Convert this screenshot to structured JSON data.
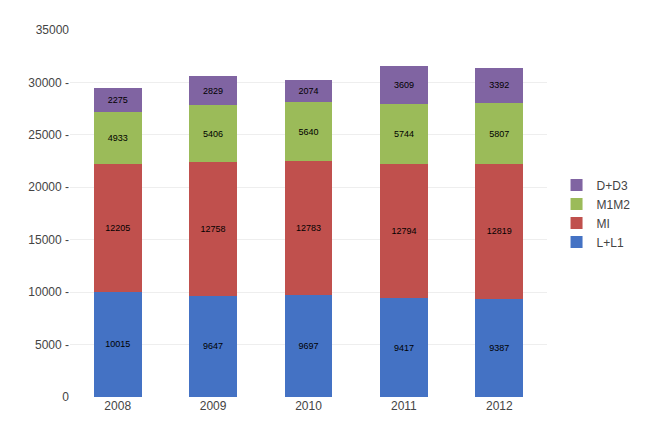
{
  "chart_data": {
    "type": "bar",
    "stacked": true,
    "categories": [
      "2008",
      "2009",
      "2010",
      "2011",
      "2012"
    ],
    "series": [
      {
        "name": "L+L1",
        "color": "#4472C4",
        "values": [
          10015,
          9647,
          9697,
          9417,
          9387
        ]
      },
      {
        "name": "MI",
        "color": "#C0504D",
        "values": [
          12205,
          12758,
          12783,
          12794,
          12819
        ]
      },
      {
        "name": "M1M2",
        "color": "#9BBB59",
        "values": [
          4933,
          5406,
          5640,
          5744,
          5807
        ]
      },
      {
        "name": "D+D3",
        "color": "#8064A2",
        "values": [
          2275,
          2829,
          2074,
          3609,
          3392
        ]
      }
    ],
    "ylim": [
      0,
      35000
    ],
    "yticks": [
      0,
      {
        "value": 5000,
        "label": "5000 -"
      },
      {
        "value": 10000,
        "label": "10000 -"
      },
      {
        "value": 15000,
        "label": "15000 -"
      },
      {
        "value": 20000,
        "label": "20000 -"
      },
      {
        "value": 25000,
        "label": "25000 -"
      },
      {
        "value": 30000,
        "label": "30000 -"
      },
      35000
    ],
    "grid": true,
    "legend": "right",
    "data_labels": true
  }
}
